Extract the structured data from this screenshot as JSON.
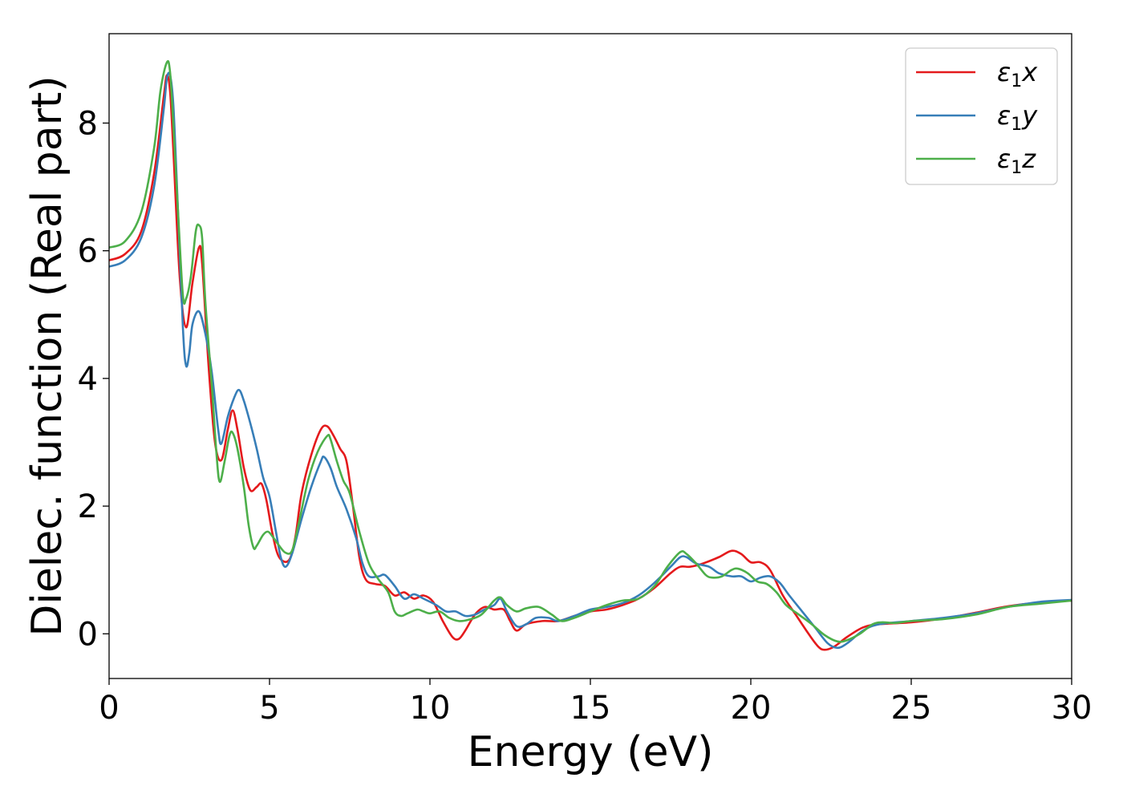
{
  "chart_data": {
    "type": "line",
    "title": "",
    "xlabel": "Energy (eV)",
    "ylabel": "Dielec. function (Real part)",
    "xlim": [
      0,
      30
    ],
    "ylim": [
      -0.7,
      9.4
    ],
    "xticks": [
      0,
      5,
      10,
      15,
      20,
      25,
      30
    ],
    "yticks": [
      0,
      2,
      4,
      6,
      8
    ],
    "xtick_labels": [
      "0",
      "5",
      "10",
      "15",
      "20",
      "25",
      "30"
    ],
    "ytick_labels": [
      "0",
      "2",
      "4",
      "6",
      "8"
    ],
    "grid": false,
    "legend_position": "top-right",
    "series": [
      {
        "name": "ε₁x",
        "legend_base": "ε",
        "legend_sub": "1",
        "legend_var": "x",
        "color": "#e41a1c",
        "points": [
          [
            0,
            5.85
          ],
          [
            0.5,
            5.95
          ],
          [
            1.0,
            6.3
          ],
          [
            1.4,
            7.2
          ],
          [
            1.7,
            8.4
          ],
          [
            1.8,
            8.75
          ],
          [
            1.9,
            8.5
          ],
          [
            2.0,
            7.6
          ],
          [
            2.2,
            5.6
          ],
          [
            2.4,
            4.8
          ],
          [
            2.6,
            5.5
          ],
          [
            2.8,
            6.05
          ],
          [
            2.9,
            5.8
          ],
          [
            3.1,
            4.2
          ],
          [
            3.3,
            3.0
          ],
          [
            3.5,
            2.72
          ],
          [
            3.7,
            3.2
          ],
          [
            3.85,
            3.5
          ],
          [
            4.0,
            3.2
          ],
          [
            4.2,
            2.6
          ],
          [
            4.4,
            2.25
          ],
          [
            4.6,
            2.3
          ],
          [
            4.75,
            2.35
          ],
          [
            4.9,
            2.1
          ],
          [
            5.1,
            1.55
          ],
          [
            5.3,
            1.2
          ],
          [
            5.6,
            1.15
          ],
          [
            5.8,
            1.5
          ],
          [
            6.0,
            2.2
          ],
          [
            6.3,
            2.8
          ],
          [
            6.6,
            3.2
          ],
          [
            6.8,
            3.25
          ],
          [
            7.0,
            3.1
          ],
          [
            7.2,
            2.9
          ],
          [
            7.4,
            2.7
          ],
          [
            7.6,
            2.0
          ],
          [
            7.8,
            1.2
          ],
          [
            8.0,
            0.85
          ],
          [
            8.3,
            0.78
          ],
          [
            8.6,
            0.75
          ],
          [
            8.9,
            0.6
          ],
          [
            9.2,
            0.65
          ],
          [
            9.5,
            0.55
          ],
          [
            9.8,
            0.6
          ],
          [
            10.1,
            0.5
          ],
          [
            10.4,
            0.2
          ],
          [
            10.7,
            -0.05
          ],
          [
            10.9,
            -0.08
          ],
          [
            11.1,
            0.05
          ],
          [
            11.4,
            0.3
          ],
          [
            11.7,
            0.42
          ],
          [
            12.0,
            0.38
          ],
          [
            12.3,
            0.38
          ],
          [
            12.5,
            0.2
          ],
          [
            12.7,
            0.05
          ],
          [
            13.0,
            0.15
          ],
          [
            13.5,
            0.2
          ],
          [
            14.0,
            0.2
          ],
          [
            14.5,
            0.28
          ],
          [
            15.0,
            0.35
          ],
          [
            15.5,
            0.38
          ],
          [
            16.0,
            0.45
          ],
          [
            16.5,
            0.55
          ],
          [
            17.0,
            0.72
          ],
          [
            17.5,
            0.95
          ],
          [
            17.8,
            1.05
          ],
          [
            18.1,
            1.05
          ],
          [
            18.5,
            1.1
          ],
          [
            19.0,
            1.2
          ],
          [
            19.4,
            1.3
          ],
          [
            19.7,
            1.25
          ],
          [
            20.0,
            1.12
          ],
          [
            20.3,
            1.12
          ],
          [
            20.6,
            1.0
          ],
          [
            21.0,
            0.6
          ],
          [
            21.4,
            0.3
          ],
          [
            21.8,
            0.0
          ],
          [
            22.1,
            -0.2
          ],
          [
            22.3,
            -0.25
          ],
          [
            22.6,
            -0.2
          ],
          [
            23.0,
            -0.05
          ],
          [
            23.5,
            0.1
          ],
          [
            24.0,
            0.15
          ],
          [
            25.0,
            0.18
          ],
          [
            26.0,
            0.24
          ],
          [
            27.0,
            0.33
          ],
          [
            28.0,
            0.43
          ],
          [
            29.0,
            0.49
          ],
          [
            30.0,
            0.52
          ]
        ]
      },
      {
        "name": "ε₁y",
        "legend_base": "ε",
        "legend_sub": "1",
        "legend_var": "y",
        "color": "#377eb8",
        "points": [
          [
            0,
            5.75
          ],
          [
            0.5,
            5.85
          ],
          [
            1.0,
            6.2
          ],
          [
            1.4,
            7.0
          ],
          [
            1.7,
            8.2
          ],
          [
            1.8,
            8.7
          ],
          [
            1.9,
            8.75
          ],
          [
            2.0,
            8.3
          ],
          [
            2.1,
            7.2
          ],
          [
            2.3,
            4.8
          ],
          [
            2.4,
            4.2
          ],
          [
            2.5,
            4.4
          ],
          [
            2.6,
            4.85
          ],
          [
            2.8,
            5.05
          ],
          [
            3.0,
            4.7
          ],
          [
            3.2,
            4.1
          ],
          [
            3.4,
            3.2
          ],
          [
            3.5,
            2.98
          ],
          [
            3.7,
            3.4
          ],
          [
            3.9,
            3.7
          ],
          [
            4.05,
            3.82
          ],
          [
            4.2,
            3.65
          ],
          [
            4.4,
            3.3
          ],
          [
            4.6,
            2.9
          ],
          [
            4.8,
            2.45
          ],
          [
            5.0,
            2.15
          ],
          [
            5.2,
            1.6
          ],
          [
            5.35,
            1.2
          ],
          [
            5.5,
            1.05
          ],
          [
            5.7,
            1.25
          ],
          [
            6.0,
            1.8
          ],
          [
            6.3,
            2.3
          ],
          [
            6.6,
            2.7
          ],
          [
            6.7,
            2.77
          ],
          [
            6.9,
            2.6
          ],
          [
            7.1,
            2.3
          ],
          [
            7.4,
            1.95
          ],
          [
            7.7,
            1.5
          ],
          [
            7.9,
            1.1
          ],
          [
            8.1,
            0.9
          ],
          [
            8.4,
            0.9
          ],
          [
            8.6,
            0.92
          ],
          [
            8.9,
            0.75
          ],
          [
            9.2,
            0.55
          ],
          [
            9.5,
            0.62
          ],
          [
            9.8,
            0.55
          ],
          [
            10.2,
            0.45
          ],
          [
            10.5,
            0.35
          ],
          [
            10.8,
            0.35
          ],
          [
            11.1,
            0.28
          ],
          [
            11.4,
            0.3
          ],
          [
            11.7,
            0.38
          ],
          [
            12.0,
            0.45
          ],
          [
            12.2,
            0.55
          ],
          [
            12.4,
            0.35
          ],
          [
            12.7,
            0.12
          ],
          [
            13.0,
            0.15
          ],
          [
            13.3,
            0.25
          ],
          [
            13.7,
            0.25
          ],
          [
            14.0,
            0.2
          ],
          [
            14.5,
            0.28
          ],
          [
            15.0,
            0.38
          ],
          [
            15.5,
            0.42
          ],
          [
            16.0,
            0.48
          ],
          [
            16.5,
            0.6
          ],
          [
            17.0,
            0.8
          ],
          [
            17.5,
            1.05
          ],
          [
            17.8,
            1.2
          ],
          [
            18.0,
            1.2
          ],
          [
            18.3,
            1.1
          ],
          [
            18.7,
            1.05
          ],
          [
            19.0,
            0.95
          ],
          [
            19.4,
            0.9
          ],
          [
            19.7,
            0.9
          ],
          [
            20.0,
            0.82
          ],
          [
            20.3,
            0.88
          ],
          [
            20.6,
            0.9
          ],
          [
            20.9,
            0.8
          ],
          [
            21.2,
            0.6
          ],
          [
            21.6,
            0.35
          ],
          [
            22.0,
            0.1
          ],
          [
            22.4,
            -0.15
          ],
          [
            22.7,
            -0.22
          ],
          [
            23.0,
            -0.15
          ],
          [
            23.5,
            0.05
          ],
          [
            24.0,
            0.15
          ],
          [
            25.0,
            0.2
          ],
          [
            26.0,
            0.25
          ],
          [
            27.0,
            0.32
          ],
          [
            28.0,
            0.42
          ],
          [
            29.0,
            0.5
          ],
          [
            30.0,
            0.53
          ]
        ]
      },
      {
        "name": "ε₁z",
        "legend_base": "ε",
        "legend_sub": "1",
        "legend_var": "z",
        "color": "#4daf4a",
        "points": [
          [
            0,
            6.05
          ],
          [
            0.5,
            6.15
          ],
          [
            1.0,
            6.6
          ],
          [
            1.4,
            7.6
          ],
          [
            1.6,
            8.5
          ],
          [
            1.8,
            8.95
          ],
          [
            1.9,
            8.8
          ],
          [
            2.0,
            8.0
          ],
          [
            2.15,
            6.6
          ],
          [
            2.3,
            5.3
          ],
          [
            2.4,
            5.25
          ],
          [
            2.55,
            5.6
          ],
          [
            2.7,
            6.3
          ],
          [
            2.8,
            6.4
          ],
          [
            2.9,
            6.2
          ],
          [
            3.0,
            5.2
          ],
          [
            3.2,
            3.9
          ],
          [
            3.35,
            2.8
          ],
          [
            3.45,
            2.38
          ],
          [
            3.6,
            2.7
          ],
          [
            3.75,
            3.1
          ],
          [
            3.85,
            3.15
          ],
          [
            4.0,
            2.9
          ],
          [
            4.2,
            2.3
          ],
          [
            4.35,
            1.7
          ],
          [
            4.5,
            1.35
          ],
          [
            4.6,
            1.38
          ],
          [
            4.8,
            1.55
          ],
          [
            4.95,
            1.6
          ],
          [
            5.1,
            1.52
          ],
          [
            5.3,
            1.38
          ],
          [
            5.5,
            1.27
          ],
          [
            5.7,
            1.3
          ],
          [
            5.9,
            1.7
          ],
          [
            6.2,
            2.4
          ],
          [
            6.5,
            2.85
          ],
          [
            6.8,
            3.1
          ],
          [
            6.9,
            3.05
          ],
          [
            7.1,
            2.7
          ],
          [
            7.3,
            2.4
          ],
          [
            7.5,
            2.2
          ],
          [
            7.8,
            1.6
          ],
          [
            8.1,
            1.1
          ],
          [
            8.4,
            0.85
          ],
          [
            8.7,
            0.65
          ],
          [
            8.9,
            0.35
          ],
          [
            9.1,
            0.28
          ],
          [
            9.3,
            0.32
          ],
          [
            9.6,
            0.38
          ],
          [
            9.8,
            0.35
          ],
          [
            10.0,
            0.32
          ],
          [
            10.3,
            0.35
          ],
          [
            10.6,
            0.25
          ],
          [
            10.9,
            0.2
          ],
          [
            11.2,
            0.22
          ],
          [
            11.6,
            0.3
          ],
          [
            12.0,
            0.52
          ],
          [
            12.2,
            0.57
          ],
          [
            12.4,
            0.45
          ],
          [
            12.7,
            0.35
          ],
          [
            13.0,
            0.4
          ],
          [
            13.4,
            0.42
          ],
          [
            13.8,
            0.3
          ],
          [
            14.1,
            0.2
          ],
          [
            14.5,
            0.25
          ],
          [
            15.0,
            0.35
          ],
          [
            15.5,
            0.45
          ],
          [
            16.0,
            0.52
          ],
          [
            16.5,
            0.55
          ],
          [
            17.0,
            0.75
          ],
          [
            17.4,
            1.05
          ],
          [
            17.8,
            1.28
          ],
          [
            18.0,
            1.25
          ],
          [
            18.3,
            1.1
          ],
          [
            18.6,
            0.92
          ],
          [
            18.8,
            0.88
          ],
          [
            19.1,
            0.9
          ],
          [
            19.4,
            1.0
          ],
          [
            19.6,
            1.02
          ],
          [
            19.9,
            0.95
          ],
          [
            20.2,
            0.82
          ],
          [
            20.5,
            0.78
          ],
          [
            20.8,
            0.65
          ],
          [
            21.1,
            0.45
          ],
          [
            21.5,
            0.3
          ],
          [
            21.9,
            0.15
          ],
          [
            22.3,
            -0.02
          ],
          [
            22.7,
            -0.12
          ],
          [
            23.0,
            -0.1
          ],
          [
            23.4,
            0.0
          ],
          [
            23.8,
            0.15
          ],
          [
            24.1,
            0.18
          ],
          [
            24.5,
            0.17
          ],
          [
            25.0,
            0.2
          ],
          [
            26.0,
            0.23
          ],
          [
            27.0,
            0.3
          ],
          [
            28.0,
            0.42
          ],
          [
            29.0,
            0.47
          ],
          [
            30.0,
            0.52
          ]
        ]
      }
    ]
  }
}
